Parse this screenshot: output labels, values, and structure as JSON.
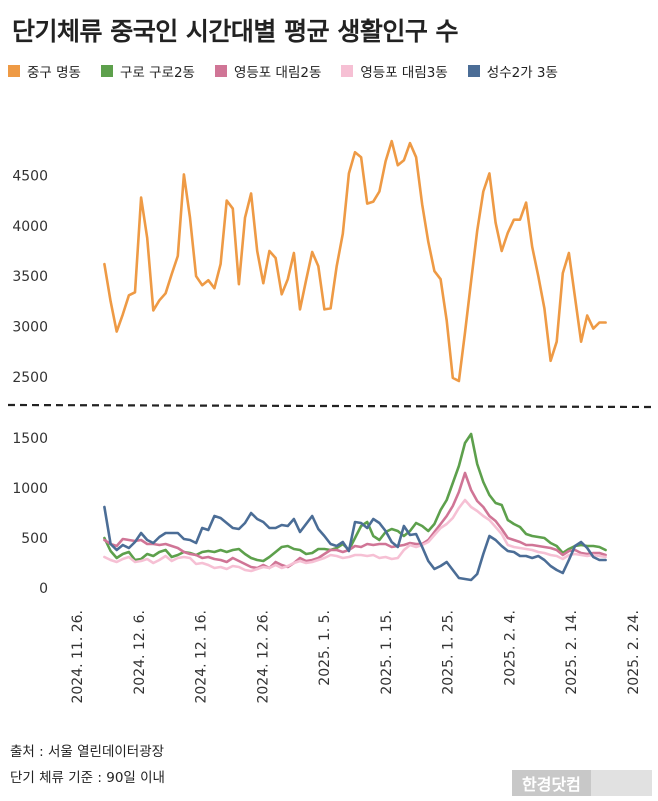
{
  "title": "단기체류 중국인 시간대별 평균 생활인구 수",
  "footer": {
    "source": "출처 : 서울 열린데이터광장",
    "criteria": "단기 체류 기준 : 90일 이내"
  },
  "logo": "한경닷컴",
  "colors": {
    "jung_myeongdong": "#ee9a45",
    "guro": "#5da04c",
    "ydp2": "#d07596",
    "ydp3": "#f6c0d4",
    "seongsu": "#4b6d96"
  },
  "chart_data": {
    "type": "line",
    "x_axis": {
      "type": "date",
      "tick_labels": [
        "2024. 11. 26.",
        "2024. 12. 6.",
        "2024. 12. 16.",
        "2024. 12. 26.",
        "2025. 1. 5.",
        "2025. 1. 15.",
        "2025. 1. 25.",
        "2025. 2. 4.",
        "2025. 2. 14.",
        "2025. 2. 24."
      ],
      "range": [
        "2024-11-26",
        "2025-02-24"
      ]
    },
    "upper_panel": {
      "ylim": [
        2400,
        5000
      ],
      "yticks": [
        2500,
        3000,
        3500,
        4000,
        4500
      ]
    },
    "lower_panel": {
      "ylim": [
        -80,
        1650
      ],
      "yticks": [
        0,
        500,
        1000,
        1500
      ]
    },
    "legend_position": "top",
    "grid": false,
    "x": [
      "2024-11-30",
      "2024-12-01",
      "2024-12-02",
      "2024-12-03",
      "2024-12-04",
      "2024-12-05",
      "2024-12-06",
      "2024-12-07",
      "2024-12-08",
      "2024-12-09",
      "2024-12-10",
      "2024-12-11",
      "2024-12-12",
      "2024-12-13",
      "2024-12-14",
      "2024-12-15",
      "2024-12-16",
      "2024-12-17",
      "2024-12-18",
      "2024-12-19",
      "2024-12-20",
      "2024-12-21",
      "2024-12-22",
      "2024-12-23",
      "2024-12-24",
      "2024-12-25",
      "2024-12-26",
      "2024-12-27",
      "2024-12-28",
      "2024-12-29",
      "2024-12-30",
      "2024-12-31",
      "2025-01-01",
      "2025-01-02",
      "2025-01-03",
      "2025-01-04",
      "2025-01-05",
      "2025-01-06",
      "2025-01-07",
      "2025-01-08",
      "2025-01-09",
      "2025-01-10",
      "2025-01-11",
      "2025-01-12",
      "2025-01-13",
      "2025-01-14",
      "2025-01-15",
      "2025-01-16",
      "2025-01-17",
      "2025-01-18",
      "2025-01-19",
      "2025-01-20",
      "2025-01-21",
      "2025-01-22",
      "2025-01-23",
      "2025-01-24",
      "2025-01-25",
      "2025-01-26",
      "2025-01-27",
      "2025-01-28",
      "2025-01-29",
      "2025-01-30",
      "2025-01-31",
      "2025-02-01",
      "2025-02-02",
      "2025-02-03",
      "2025-02-04",
      "2025-02-05",
      "2025-02-06",
      "2025-02-07",
      "2025-02-08",
      "2025-02-09",
      "2025-02-10",
      "2025-02-11",
      "2025-02-12",
      "2025-02-13",
      "2025-02-14",
      "2025-02-15",
      "2025-02-16",
      "2025-02-17",
      "2025-02-18",
      "2025-02-19",
      "2025-02-20"
    ],
    "series": [
      {
        "name": "중구 명동",
        "color": "#ee9a45",
        "panel": "upper",
        "values": [
          3620,
          3250,
          2950,
          3120,
          3310,
          3340,
          4280,
          3880,
          3160,
          3260,
          3330,
          3520,
          3700,
          4510,
          4080,
          3500,
          3410,
          3460,
          3380,
          3620,
          4250,
          4170,
          3420,
          4080,
          4320,
          3750,
          3430,
          3750,
          3680,
          3320,
          3470,
          3730,
          3170,
          3460,
          3740,
          3600,
          3170,
          3180,
          3600,
          3920,
          4520,
          4730,
          4680,
          4220,
          4240,
          4340,
          4640,
          4840,
          4600,
          4650,
          4820,
          4680,
          4210,
          3840,
          3550,
          3470,
          3060,
          2490,
          2460,
          2940,
          3450,
          3950,
          4340,
          4520,
          4030,
          3750,
          3930,
          4060,
          4060,
          4230,
          3790,
          3500,
          3180,
          2660,
          2850,
          3530,
          3730,
          3290,
          2850,
          3110,
          2980,
          3040,
          3040
        ]
      },
      {
        "name": "구로 구로2동",
        "color": "#5da04c",
        "panel": "lower",
        "values": [
          500,
          370,
          300,
          340,
          360,
          280,
          290,
          340,
          320,
          360,
          380,
          310,
          330,
          360,
          350,
          330,
          360,
          370,
          360,
          380,
          360,
          380,
          390,
          340,
          300,
          280,
          270,
          310,
          360,
          410,
          420,
          390,
          380,
          340,
          350,
          390,
          390,
          380,
          400,
          440,
          380,
          500,
          620,
          660,
          520,
          480,
          560,
          590,
          570,
          520,
          570,
          650,
          620,
          570,
          640,
          780,
          880,
          1050,
          1220,
          1450,
          1540,
          1240,
          1060,
          930,
          850,
          830,
          680,
          640,
          610,
          540,
          520,
          510,
          500,
          450,
          420,
          350,
          390,
          420,
          430,
          420,
          420,
          410,
          380
        ]
      },
      {
        "name": "영등포 대림2동",
        "color": "#d07596",
        "panel": "lower",
        "values": [
          480,
          440,
          420,
          490,
          480,
          470,
          480,
          440,
          440,
          430,
          440,
          420,
          400,
          360,
          340,
          330,
          300,
          310,
          290,
          280,
          260,
          300,
          270,
          240,
          210,
          200,
          230,
          200,
          260,
          230,
          210,
          250,
          300,
          270,
          280,
          300,
          340,
          380,
          380,
          360,
          380,
          420,
          410,
          440,
          430,
          440,
          440,
          410,
          420,
          430,
          450,
          440,
          440,
          480,
          560,
          640,
          720,
          820,
          960,
          1150,
          980,
          870,
          810,
          720,
          670,
          590,
          500,
          480,
          460,
          430,
          430,
          420,
          410,
          400,
          380,
          330,
          370,
          380,
          350,
          340,
          350,
          350,
          330
        ]
      },
      {
        "name": "영등포 대림3동",
        "color": "#f6c0d4",
        "panel": "lower",
        "values": [
          310,
          280,
          260,
          290,
          310,
          260,
          270,
          290,
          250,
          280,
          320,
          270,
          300,
          310,
          300,
          240,
          250,
          230,
          200,
          210,
          190,
          220,
          210,
          180,
          170,
          190,
          210,
          200,
          230,
          200,
          220,
          250,
          270,
          250,
          260,
          280,
          300,
          330,
          320,
          300,
          310,
          330,
          330,
          320,
          330,
          300,
          310,
          290,
          300,
          380,
          430,
          410,
          430,
          460,
          530,
          600,
          640,
          700,
          800,
          880,
          810,
          770,
          720,
          680,
          610,
          540,
          430,
          410,
          400,
          390,
          380,
          360,
          350,
          330,
          320,
          290,
          330,
          340,
          330,
          320,
          330,
          320,
          310
        ]
      },
      {
        "name": "성수2가 3동",
        "color": "#4b6d96",
        "panel": "lower",
        "values": [
          810,
          440,
          380,
          430,
          400,
          460,
          550,
          480,
          450,
          510,
          550,
          550,
          550,
          490,
          480,
          450,
          600,
          580,
          720,
          700,
          650,
          600,
          590,
          650,
          750,
          690,
          660,
          600,
          600,
          630,
          620,
          690,
          560,
          640,
          720,
          590,
          520,
          440,
          420,
          460,
          370,
          660,
          650,
          600,
          690,
          650,
          570,
          460,
          410,
          620,
          530,
          540,
          410,
          270,
          190,
          220,
          260,
          180,
          100,
          90,
          80,
          140,
          340,
          520,
          480,
          420,
          370,
          360,
          320,
          320,
          300,
          320,
          280,
          220,
          180,
          150,
          280,
          420,
          460,
          400,
          310,
          280,
          280
        ]
      }
    ]
  }
}
